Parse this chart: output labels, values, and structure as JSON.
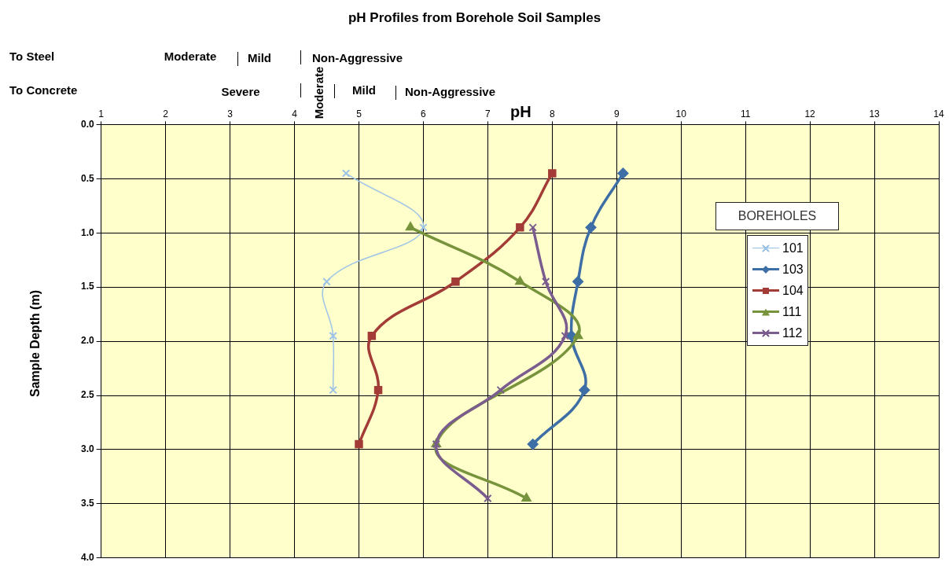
{
  "chart_data": {
    "type": "line",
    "title": "pH Profiles from Borehole Soil Samples",
    "xlabel": "pH",
    "ylabel": "Sample Depth (m)",
    "legend_title": "BOREHOLES",
    "legend": "right",
    "annotations": [
      "To Steel",
      "Moderate",
      "Mild",
      "Non-Aggressive",
      "To Concrete",
      "Severe",
      "Moderate",
      "Mild",
      "Non-Aggressive"
    ],
    "xlim": [
      1,
      14
    ],
    "xticks": [
      1,
      2,
      3,
      4,
      5,
      6,
      7,
      8,
      9,
      10,
      11,
      12,
      13,
      14
    ],
    "ylim": [
      4,
      0
    ],
    "yticks": [
      {
        "value": 0,
        "label": "0.0"
      },
      {
        "value": 0.5,
        "label": "0.5"
      },
      {
        "value": 1,
        "label": "1.0"
      },
      {
        "value": 1.5,
        "label": "1.5"
      },
      {
        "value": 2,
        "label": "2.0"
      },
      {
        "value": 2.5,
        "label": "2.5"
      },
      {
        "value": 3,
        "label": "3.0"
      },
      {
        "value": 3.5,
        "label": "3.5"
      },
      {
        "value": 4,
        "label": "4.0"
      }
    ],
    "grid": true,
    "series": [
      {
        "name": "101",
        "color": "#9dc3e6",
        "marker": "cross",
        "x": [
          4.8,
          6.0,
          4.5,
          4.6,
          4.6
        ],
        "values": [
          0.45,
          0.95,
          1.45,
          1.95,
          2.45
        ]
      },
      {
        "name": "103",
        "color": "#3d6ea5",
        "marker": "diamond",
        "x": [
          9.1,
          8.6,
          8.4,
          8.3,
          8.5,
          7.7
        ],
        "values": [
          0.45,
          0.95,
          1.45,
          1.95,
          2.45,
          2.95
        ]
      },
      {
        "name": "104",
        "color": "#a33b36",
        "marker": "square",
        "x": [
          8.0,
          7.5,
          6.5,
          5.2,
          5.3,
          5.0
        ],
        "values": [
          0.45,
          0.95,
          1.45,
          1.95,
          2.45,
          2.95
        ]
      },
      {
        "name": "111",
        "color": "#77933c",
        "marker": "triangle",
        "x": [
          5.8,
          7.5,
          8.4,
          6.2,
          7.6
        ],
        "values": [
          0.95,
          1.45,
          1.95,
          2.95,
          3.45
        ]
      },
      {
        "name": "112",
        "color": "#7a5c8f",
        "marker": "cross",
        "x": [
          7.7,
          7.9,
          8.2,
          7.2,
          6.2,
          7.0
        ],
        "values": [
          0.95,
          1.45,
          1.95,
          2.45,
          2.95,
          3.45
        ]
      }
    ]
  }
}
